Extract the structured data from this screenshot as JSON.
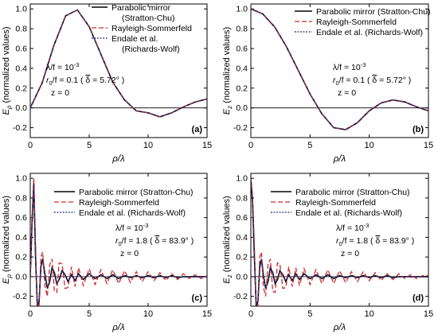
{
  "chart_data": [
    {
      "panel": "(a)",
      "type": "line",
      "xlabel": "ρ/λ",
      "ylabel": "E_ρ (normalized values)",
      "xlim": [
        0,
        15
      ],
      "ylim": [
        -0.3,
        1.05
      ],
      "xticks": [
        0,
        5,
        10,
        15
      ],
      "yticks": [
        -0.2,
        0.0,
        0.2,
        0.4,
        0.6,
        0.8,
        1.0
      ],
      "legend": [
        {
          "label": "Parabolic mirror",
          "label2": "(Stratton-Chu)",
          "style": "solid",
          "color": "#000000"
        },
        {
          "label": "Rayleigh-Sommerfeld",
          "style": "dashed",
          "color": "#cc2a2a"
        },
        {
          "label": "Endale et al.",
          "label2": "(Richards-Wolf)",
          "style": "dotted",
          "color": "#1a2a8a"
        }
      ],
      "legend_position": "top-right",
      "annotation": {
        "line1": "λ/f = 10",
        "line1_sup": "-3",
        "line2a": "r",
        "line2_sub": "0",
        "line2b": "/f = 0.1 ( ",
        "line2_delta": "δ",
        "line2c": " = 5.72° )",
        "line3": "z = 0"
      },
      "x": [
        0,
        1,
        2,
        3,
        4,
        5,
        6,
        7,
        8,
        9,
        10,
        11,
        12,
        13,
        14,
        15
      ],
      "series": [
        {
          "values": [
            0.0,
            0.25,
            0.63,
            0.93,
            0.99,
            0.82,
            0.54,
            0.26,
            0.08,
            -0.03,
            -0.05,
            -0.09,
            -0.05,
            0.01,
            0.06,
            0.09
          ]
        },
        {
          "values": [
            0.0,
            0.25,
            0.63,
            0.93,
            0.99,
            0.82,
            0.54,
            0.26,
            0.08,
            -0.03,
            -0.05,
            -0.09,
            -0.05,
            0.01,
            0.06,
            0.09
          ]
        },
        {
          "values": [
            0.0,
            0.25,
            0.63,
            0.93,
            0.99,
            0.82,
            0.54,
            0.26,
            0.08,
            -0.03,
            -0.05,
            -0.09,
            -0.05,
            0.01,
            0.06,
            0.09
          ]
        }
      ]
    },
    {
      "panel": "(b)",
      "type": "line",
      "xlabel": "ρ/λ",
      "ylabel": "E_z (normalized values)",
      "xlim": [
        0,
        15
      ],
      "ylim": [
        -0.3,
        1.05
      ],
      "xticks": [
        0,
        5,
        10,
        15
      ],
      "yticks": [
        -0.2,
        0.0,
        0.2,
        0.4,
        0.6,
        0.8,
        1.0
      ],
      "legend": [
        {
          "label": "Parabolic mirror (Stratton-Chu)",
          "style": "solid",
          "color": "#000000"
        },
        {
          "label": "Rayleigh-Sommerfeld",
          "style": "dashed",
          "color": "#cc2a2a"
        },
        {
          "label": "Endale et al. (Richards-Wolf)",
          "style": "dotted",
          "color": "#1a2a8a"
        }
      ],
      "legend_position": "top-right",
      "annotation": {
        "line1": "λ/f = 10",
        "line1_sup": "-3",
        "line2a": "r",
        "line2_sub": "0",
        "line2b": "/f = 0.1 ( ",
        "line2_delta": "δ",
        "line2c": " = 5.72° )",
        "line3": "z = 0"
      },
      "x": [
        0,
        1,
        2,
        3,
        4,
        5,
        6,
        7,
        8,
        9,
        10,
        11,
        12,
        13,
        14,
        15
      ],
      "series": [
        {
          "values": [
            1.0,
            0.95,
            0.82,
            0.62,
            0.38,
            0.14,
            -0.06,
            -0.2,
            -0.22,
            -0.15,
            -0.03,
            0.05,
            0.08,
            0.06,
            0.01,
            -0.03
          ]
        },
        {
          "values": [
            1.0,
            0.95,
            0.82,
            0.62,
            0.38,
            0.14,
            -0.06,
            -0.2,
            -0.22,
            -0.15,
            -0.03,
            0.05,
            0.08,
            0.06,
            0.01,
            -0.03
          ]
        },
        {
          "values": [
            1.0,
            0.95,
            0.82,
            0.62,
            0.38,
            0.14,
            -0.06,
            -0.2,
            -0.22,
            -0.15,
            -0.03,
            0.05,
            0.08,
            0.06,
            0.01,
            -0.03
          ]
        }
      ]
    },
    {
      "panel": "(c)",
      "type": "line",
      "xlabel": "ρ/λ",
      "ylabel": "E_ρ (normalized values)",
      "xlim": [
        0,
        15
      ],
      "ylim": [
        -0.3,
        1.05
      ],
      "xticks": [
        0,
        5,
        10,
        15
      ],
      "yticks": [
        -0.2,
        0.0,
        0.2,
        0.4,
        0.6,
        0.8,
        1.0
      ],
      "legend": [
        {
          "label": "Parabolic mirror (Stratton-Chu)",
          "style": "solid",
          "color": "#000000"
        },
        {
          "label": "Rayleigh-Sommerfeld",
          "style": "dashed",
          "color": "#cc2a2a"
        },
        {
          "label": "Endale et al. (Richards-Wolf)",
          "style": "dotted",
          "color": "#1a2a8a"
        }
      ],
      "legend_position": "top-right",
      "annotation": {
        "line1": "λ/f = 10",
        "line1_sup": "-3",
        "line2a": "r",
        "line2_sub": "0",
        "line2b": "/f = 1.8 ( ",
        "line2_delta": "δ",
        "line2c": " = 83.9° )",
        "line3": "z = 0"
      },
      "x": [
        0,
        0.15,
        0.3,
        0.45,
        0.6,
        0.75,
        0.9,
        1.05,
        1.25,
        1.45,
        1.65,
        1.85,
        2.05,
        2.25,
        2.45,
        2.7,
        2.95,
        3.2,
        3.5,
        3.8,
        4.1,
        4.5,
        5.0,
        5.5,
        6.0,
        6.5,
        7.0,
        7.5,
        8.0,
        8.5,
        9.0,
        9.5,
        10,
        10.5,
        11,
        11.5,
        12,
        12.5,
        13,
        13.5,
        14,
        14.5,
        15
      ],
      "series": [
        {
          "values": [
            0.0,
            0.55,
            0.95,
            0.2,
            -0.3,
            -0.25,
            0.1,
            0.18,
            0.02,
            -0.12,
            -0.05,
            0.09,
            0.04,
            -0.07,
            -0.03,
            0.06,
            0.02,
            -0.05,
            0.02,
            -0.04,
            0.03,
            -0.03,
            0.03,
            -0.02,
            0.02,
            -0.02,
            0.02,
            -0.02,
            0.01,
            -0.01,
            0.01,
            -0.01,
            0.01,
            -0.01,
            0.01,
            -0.01,
            0.01,
            -0.01,
            0.0,
            0.0,
            0.0,
            0.0,
            0.0
          ]
        },
        {
          "values": [
            0.0,
            0.6,
            1.0,
            0.3,
            -0.35,
            -0.3,
            0.2,
            0.25,
            -0.1,
            -0.2,
            0.12,
            0.18,
            -0.15,
            -0.16,
            0.14,
            0.13,
            -0.12,
            -0.11,
            0.1,
            -0.1,
            0.09,
            -0.09,
            0.08,
            -0.08,
            0.07,
            -0.07,
            0.07,
            -0.07,
            0.06,
            -0.06,
            0.05,
            -0.05,
            0.05,
            -0.04,
            0.04,
            -0.04,
            0.03,
            -0.03,
            0.03,
            -0.02,
            0.02,
            -0.02,
            0.01
          ]
        },
        {
          "values": [
            0.0,
            0.55,
            0.95,
            0.2,
            -0.3,
            -0.25,
            0.1,
            0.18,
            0.02,
            -0.12,
            -0.05,
            0.09,
            0.04,
            -0.07,
            -0.03,
            0.06,
            0.02,
            -0.05,
            0.02,
            -0.04,
            0.03,
            -0.03,
            0.03,
            -0.02,
            0.02,
            -0.02,
            0.02,
            -0.02,
            0.01,
            -0.01,
            0.01,
            -0.01,
            0.01,
            -0.01,
            0.01,
            -0.01,
            0.01,
            -0.01,
            0.0,
            0.0,
            0.0,
            0.0,
            0.0
          ]
        }
      ]
    },
    {
      "panel": "(d)",
      "type": "line",
      "xlabel": "ρ/λ",
      "ylabel": "E_z (normalized values)",
      "xlim": [
        0,
        15
      ],
      "ylim": [
        -0.3,
        1.05
      ],
      "xticks": [
        0,
        5,
        10,
        15
      ],
      "yticks": [
        -0.2,
        0.0,
        0.2,
        0.4,
        0.6,
        0.8,
        1.0
      ],
      "legend": [
        {
          "label": "Parabolic mirror (Stratton-Chu)",
          "style": "solid",
          "color": "#000000"
        },
        {
          "label": "Rayleigh-Sommerfeld",
          "style": "dashed",
          "color": "#cc2a2a"
        },
        {
          "label": "Endale et al. (Richards-Wolf)",
          "style": "dotted",
          "color": "#1a2a8a"
        }
      ],
      "legend_position": "top-right",
      "annotation": {
        "line1": "λ/f = 10",
        "line1_sup": "-3",
        "line2a": "r",
        "line2_sub": "0",
        "line2b": "/f = 1.8 ( ",
        "line2_delta": "δ",
        "line2c": " = 83.9° )",
        "line3": "z = 0"
      },
      "x": [
        0,
        0.15,
        0.3,
        0.45,
        0.6,
        0.75,
        0.9,
        1.05,
        1.25,
        1.45,
        1.65,
        1.85,
        2.05,
        2.25,
        2.45,
        2.7,
        2.95,
        3.2,
        3.5,
        3.8,
        4.1,
        4.5,
        5.0,
        5.5,
        6.0,
        6.5,
        7.0,
        7.5,
        8.0,
        8.5,
        9.0,
        9.5,
        10,
        10.5,
        11,
        11.5,
        12,
        12.5,
        13,
        13.5,
        14,
        14.5,
        15
      ],
      "series": [
        {
          "values": [
            1.0,
            0.75,
            0.2,
            -0.3,
            -0.25,
            0.1,
            0.18,
            0.02,
            -0.12,
            -0.05,
            0.09,
            0.04,
            -0.07,
            -0.03,
            0.06,
            0.02,
            -0.05,
            0.02,
            -0.04,
            0.03,
            -0.03,
            0.03,
            -0.02,
            0.02,
            -0.02,
            0.02,
            -0.02,
            0.01,
            -0.01,
            0.01,
            -0.01,
            0.01,
            -0.01,
            0.01,
            -0.01,
            0.01,
            -0.01,
            0.0,
            0.0,
            0.0,
            0.0,
            0.0,
            0.0
          ]
        },
        {
          "values": [
            1.0,
            0.8,
            0.3,
            -0.35,
            -0.3,
            0.2,
            0.25,
            -0.1,
            -0.2,
            0.12,
            0.18,
            -0.15,
            -0.16,
            0.14,
            0.13,
            -0.12,
            -0.11,
            0.1,
            -0.1,
            0.09,
            -0.09,
            0.08,
            -0.08,
            0.07,
            -0.07,
            0.07,
            -0.07,
            0.06,
            -0.06,
            0.05,
            -0.05,
            0.05,
            -0.04,
            0.04,
            -0.04,
            0.03,
            -0.03,
            0.03,
            -0.02,
            0.02,
            -0.02,
            0.01,
            0.01
          ]
        },
        {
          "values": [
            1.0,
            0.75,
            0.2,
            -0.3,
            -0.25,
            0.1,
            0.18,
            0.02,
            -0.12,
            -0.05,
            0.09,
            0.04,
            -0.07,
            -0.03,
            0.06,
            0.02,
            -0.05,
            0.02,
            -0.04,
            0.03,
            -0.03,
            0.03,
            -0.02,
            0.02,
            -0.02,
            0.02,
            -0.02,
            0.01,
            -0.01,
            0.01,
            -0.01,
            0.01,
            -0.01,
            0.01,
            -0.01,
            0.01,
            -0.01,
            0.0,
            0.0,
            0.0,
            0.0,
            0.0,
            0.0
          ]
        }
      ]
    }
  ]
}
